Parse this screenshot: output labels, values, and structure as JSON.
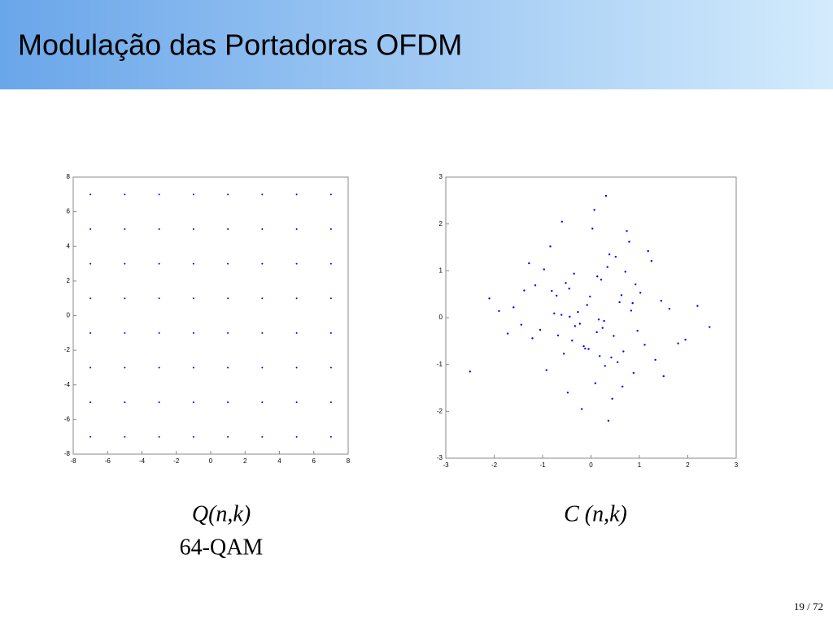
{
  "title": "Modulação das Portadoras OFDM",
  "page_number": "19 / 72",
  "chart_data": [
    {
      "type": "scatter",
      "caption": "Q(n,k)",
      "subcaption": "64-QAM",
      "color": "#0000ff",
      "xlim": [
        -8,
        8
      ],
      "ylim": [
        -8,
        8
      ],
      "xticks": [
        -8,
        -6,
        -4,
        -2,
        0,
        2,
        4,
        6,
        8
      ],
      "yticks": [
        -8,
        -6,
        -4,
        -2,
        0,
        2,
        4,
        6,
        8
      ],
      "x": [
        -7,
        -5,
        -3,
        -1,
        1,
        3,
        5,
        7,
        -7,
        -5,
        -3,
        -1,
        1,
        3,
        5,
        7,
        -7,
        -5,
        -3,
        -1,
        1,
        3,
        5,
        7,
        -7,
        -5,
        -3,
        -1,
        1,
        3,
        5,
        7,
        -7,
        -5,
        -3,
        -1,
        1,
        3,
        5,
        7,
        -7,
        -5,
        -3,
        -1,
        1,
        3,
        5,
        7,
        -7,
        -5,
        -3,
        -1,
        1,
        3,
        5,
        7,
        -7,
        -5,
        -3,
        -1,
        1,
        3,
        5,
        7
      ],
      "values": [
        7,
        7,
        7,
        7,
        7,
        7,
        7,
        7,
        5,
        5,
        5,
        5,
        5,
        5,
        5,
        5,
        3,
        3,
        3,
        3,
        3,
        3,
        3,
        3,
        1,
        1,
        1,
        1,
        1,
        1,
        1,
        1,
        -1,
        -1,
        -1,
        -1,
        -1,
        -1,
        -1,
        -1,
        -3,
        -3,
        -3,
        -3,
        -3,
        -3,
        -3,
        -3,
        -5,
        -5,
        -5,
        -5,
        -5,
        -5,
        -5,
        -5,
        -7,
        -7,
        -7,
        -7,
        -7,
        -7,
        -7,
        -7
      ]
    },
    {
      "type": "scatter",
      "caption": "C (n,k)",
      "color": "#0000ff",
      "xlim": [
        -3,
        3
      ],
      "ylim": [
        -3,
        3
      ],
      "xticks": [
        -3,
        -2,
        -1,
        0,
        1,
        2,
        3
      ],
      "yticks": [
        -3,
        -2,
        -1,
        0,
        1,
        2,
        3
      ],
      "x": [
        0.12,
        -0.45,
        0.83,
        -1.21,
        0.34,
        0.67,
        -0.08,
        1.45,
        -0.92,
        0.21,
        -0.33,
        0.55,
        1.02,
        -1.6,
        0.09,
        -0.71,
        0.38,
        -0.15,
        0.96,
        -0.52,
        1.8,
        -2.1,
        0.44,
        -0.27,
        0.71,
        -1.05,
        0.18,
        1.25,
        -0.61,
        0.03,
        -0.39,
        0.88,
        -1.38,
        0.27,
        0.59,
        -0.84,
        1.62,
        -0.19,
        0.47,
        -1.72,
        0.13,
        0.79,
        -0.56,
        1.11,
        -0.02,
        -0.97,
        0.36,
        2.2,
        -0.23,
        0.65,
        -1.15,
        0.51,
        -0.44,
        1.33,
        -0.68,
        0.07,
        0.92,
        -1.9,
        0.29,
        -0.12,
        0.74,
        -0.81,
        1.5,
        -0.35,
        0.16,
        -2.5,
        1.95,
        -0.6,
        0.42,
        -1.28,
        0.86,
        -0.05,
        0.24,
        -0.76,
        1.18,
        -0.48,
        0.63,
        -1.44,
        0.31,
        2.45
      ],
      "values": [
        -0.31,
        0.62,
        0.15,
        -0.44,
        1.08,
        -0.72,
        0.27,
        0.36,
        -1.12,
        0.81,
        -0.18,
        -0.95,
        0.53,
        0.22,
        -1.4,
        0.47,
        1.35,
        -0.61,
        -0.28,
        0.74,
        -0.55,
        0.41,
        -1.73,
        0.12,
        0.98,
        -0.26,
        -0.82,
        1.21,
        0.06,
        1.9,
        -0.49,
        -1.18,
        0.58,
        -0.07,
        0.33,
        1.52,
        0.19,
        -1.95,
        -0.39,
        -0.34,
        0.88,
        1.62,
        -0.77,
        -0.58,
        0.45,
        1.03,
        -2.2,
        0.25,
        -0.13,
        -1.47,
        0.69,
        1.3,
        0.02,
        -0.9,
        -0.38,
        2.3,
        0.71,
        0.14,
        -1.03,
        -0.66,
        1.85,
        0.57,
        -1.25,
        0.94,
        -0.04,
        -1.15,
        -0.47,
        2.05,
        -0.85,
        1.16,
        0.31,
        -0.67,
        -0.22,
        0.09,
        1.42,
        -1.6,
        0.48,
        -0.15,
        2.6,
        -0.2
      ]
    }
  ]
}
